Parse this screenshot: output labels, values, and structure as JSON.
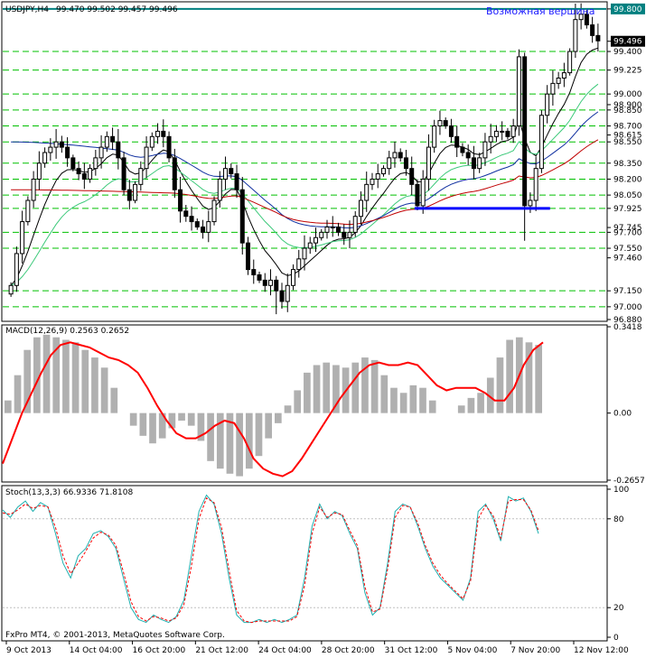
{
  "header": {
    "symbol": "USDJPY,H4",
    "ohlc": "99.470 99.502 99.457 99.496"
  },
  "annotation": "Возможная вершина",
  "copyright": "FxPro MT4, © 2001-2013, MetaQuotes Software Corp.",
  "macd_header": "MACD(12,26,9) 0.2563 0.2652",
  "stoch_header": "Stoch(13,3,3) 66.9336 71.8108",
  "colors": {
    "grid": "#00c000",
    "resistance": "#008080",
    "support": "#0000ff",
    "macd_signal": "#ff0000",
    "macd_hist": "#b0b0b0",
    "stoch_main": "#20b0b0",
    "stoch_signal": "#ff0000"
  },
  "chart_data": [
    {
      "type": "candlestick",
      "panel": "price",
      "ylim": [
        96.88,
        99.85
      ],
      "price_scale_labels": [
        "99.800",
        "99.496",
        "99.400",
        "99.225",
        "99.000",
        "98.900",
        "98.850",
        "98.700",
        "98.615",
        "98.550",
        "98.350",
        "98.200",
        "98.050",
        "97.925",
        "97.745",
        "97.700",
        "97.550",
        "97.460",
        "97.150",
        "97.000",
        "96.880"
      ],
      "grid_levels": [
        99.8,
        99.4,
        99.225,
        99.0,
        98.85,
        98.7,
        98.55,
        98.35,
        98.2,
        98.05,
        97.925,
        97.7,
        97.55,
        97.15,
        97.0
      ],
      "current_price": 99.496,
      "resistance": 99.8,
      "support": {
        "value": 97.925,
        "from": "31 Oct 12:00",
        "to": "7 Nov 20:00"
      },
      "closes": [
        97.2,
        97.5,
        97.8,
        98.0,
        98.2,
        98.35,
        98.45,
        98.5,
        98.55,
        98.5,
        98.4,
        98.3,
        98.25,
        98.2,
        98.3,
        98.4,
        98.5,
        98.6,
        98.55,
        98.4,
        98.1,
        98.0,
        98.15,
        98.3,
        98.5,
        98.6,
        98.65,
        98.6,
        98.4,
        98.1,
        97.9,
        97.85,
        97.8,
        97.75,
        97.7,
        97.8,
        98.0,
        98.2,
        98.3,
        98.25,
        98.1,
        97.6,
        97.35,
        97.3,
        97.25,
        97.2,
        97.25,
        97.15,
        97.05,
        97.2,
        97.35,
        97.45,
        97.55,
        97.6,
        97.65,
        97.7,
        97.75,
        97.75,
        97.7,
        97.65,
        97.7,
        97.85,
        98.0,
        98.15,
        98.2,
        98.25,
        98.3,
        98.4,
        98.45,
        98.4,
        98.3,
        98.15,
        97.95,
        98.2,
        98.5,
        98.7,
        98.75,
        98.7,
        98.6,
        98.5,
        98.45,
        98.4,
        98.3,
        98.4,
        98.55,
        98.6,
        98.65,
        98.65,
        98.6,
        98.7,
        99.35,
        97.95,
        98.0,
        98.3,
        98.8,
        99.0,
        99.1,
        99.15,
        99.2,
        99.4,
        99.7,
        99.75,
        99.65,
        99.55,
        99.5
      ],
      "x_tick_labels": [
        "9 Oct 2013",
        "14 Oct 04:00",
        "16 Oct 20:00",
        "21 Oct 12:00",
        "24 Oct 04:00",
        "28 Oct 20:00",
        "31 Oct 12:00",
        "5 Nov 04:00",
        "7 Nov 20:00",
        "12 Nov 12:00"
      ]
    },
    {
      "type": "macd",
      "panel": "macd",
      "ylim": [
        -0.2657,
        0.3418
      ],
      "price_scale_labels": [
        "0.3418",
        "0.00",
        "-0.2657"
      ],
      "signal": [
        -0.2,
        -0.1,
        0.0,
        0.08,
        0.16,
        0.23,
        0.27,
        0.28,
        0.27,
        0.26,
        0.24,
        0.22,
        0.21,
        0.19,
        0.16,
        0.1,
        0.03,
        -0.03,
        -0.08,
        -0.1,
        -0.1,
        -0.08,
        -0.05,
        -0.03,
        -0.04,
        -0.1,
        -0.18,
        -0.22,
        -0.24,
        -0.25,
        -0.23,
        -0.18,
        -0.12,
        -0.06,
        0.0,
        0.06,
        0.11,
        0.16,
        0.19,
        0.2,
        0.19,
        0.19,
        0.2,
        0.19,
        0.15,
        0.11,
        0.09,
        0.1,
        0.1,
        0.1,
        0.08,
        0.05,
        0.05,
        0.1,
        0.19,
        0.25,
        0.28
      ],
      "histogram": [
        0.05,
        0.15,
        0.25,
        0.3,
        0.31,
        0.3,
        0.29,
        0.28,
        0.25,
        0.22,
        0.18,
        0.1,
        0.0,
        -0.05,
        -0.09,
        -0.12,
        -0.1,
        -0.06,
        -0.03,
        -0.05,
        -0.11,
        -0.19,
        -0.22,
        -0.24,
        -0.25,
        -0.22,
        -0.17,
        -0.1,
        -0.04,
        0.03,
        0.09,
        0.16,
        0.19,
        0.2,
        0.19,
        0.18,
        0.2,
        0.22,
        0.21,
        0.15,
        0.1,
        0.08,
        0.11,
        0.1,
        0.05,
        0.0,
        0.0,
        0.03,
        0.06,
        0.08,
        0.14,
        0.22,
        0.29,
        0.3,
        0.28,
        0.27
      ]
    },
    {
      "type": "stochastic",
      "panel": "stochastic",
      "ylim": [
        0,
        100
      ],
      "price_scale_labels": [
        "100",
        "80",
        "20",
        "0"
      ],
      "main": [
        86,
        81,
        88,
        92,
        85,
        91,
        88,
        70,
        50,
        40,
        55,
        60,
        70,
        72,
        68,
        60,
        40,
        20,
        12,
        10,
        15,
        12,
        10,
        14,
        25,
        55,
        85,
        96,
        90,
        70,
        40,
        15,
        10,
        10,
        12,
        10,
        12,
        10,
        12,
        15,
        40,
        75,
        90,
        80,
        85,
        82,
        70,
        60,
        30,
        15,
        20,
        50,
        85,
        90,
        88,
        75,
        60,
        48,
        40,
        35,
        30,
        25,
        40,
        85,
        90,
        80,
        65,
        95,
        92,
        94,
        85,
        70
      ],
      "signal": [
        84,
        83,
        86,
        90,
        87,
        89,
        88,
        74,
        55,
        43,
        50,
        58,
        67,
        71,
        69,
        62,
        44,
        24,
        14,
        11,
        14,
        13,
        11,
        13,
        22,
        48,
        80,
        94,
        91,
        74,
        45,
        18,
        11,
        10,
        11,
        11,
        11,
        11,
        11,
        14,
        35,
        70,
        88,
        81,
        84,
        83,
        72,
        62,
        34,
        17,
        19,
        46,
        81,
        89,
        88,
        77,
        62,
        50,
        42,
        36,
        31,
        26,
        38,
        80,
        89,
        82,
        67,
        92,
        93,
        93,
        86,
        72
      ]
    }
  ]
}
